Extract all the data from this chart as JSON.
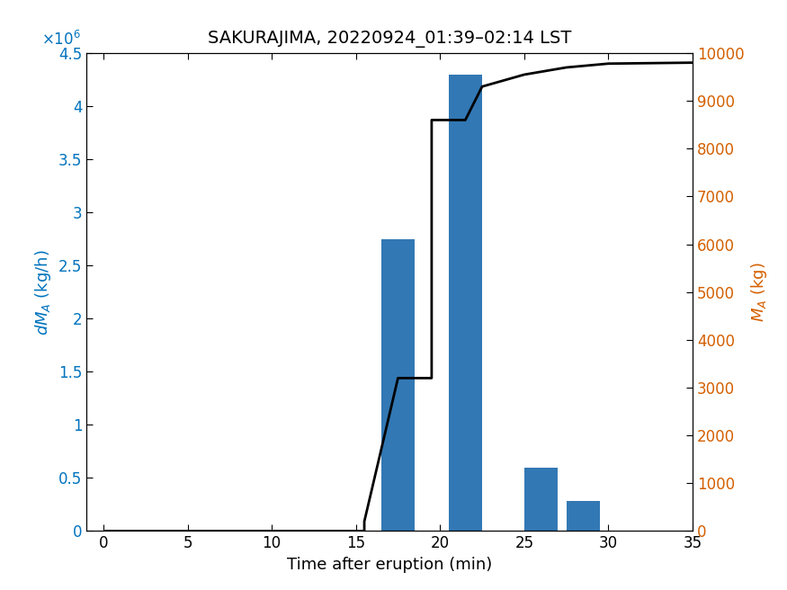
{
  "title": "SAKURAJIMA, 20220924_01:39–02:14 LST",
  "xlabel": "Time after eruption (min)",
  "ylabel_left": "$dM_A$ (kg/h)",
  "ylabel_right": "$M_A$ (kg)",
  "bar_centers": [
    17.5,
    19.5,
    21.5,
    26.0,
    28.5
  ],
  "bar_heights": [
    2750000,
    0,
    4300000,
    600000,
    280000
  ],
  "bar_width": 2.0,
  "bar_color": "#3278b4",
  "line_x": [
    0,
    15.5,
    15.5,
    17.5,
    19.5,
    19.5,
    21.5,
    22.5,
    25.0,
    27.5,
    30.0,
    35.0
  ],
  "line_y": [
    0,
    0,
    200,
    3200,
    3200,
    8600,
    8600,
    9300,
    9550,
    9700,
    9780,
    9800
  ],
  "line_color": "#000000",
  "line_width": 2.0,
  "ylim_left": [
    0,
    4500000
  ],
  "ylim_right": [
    0,
    10000
  ],
  "xlim": [
    -1,
    35
  ],
  "yticks_left": [
    0,
    500000,
    1000000,
    1500000,
    2000000,
    2500000,
    3000000,
    3500000,
    4000000,
    4500000
  ],
  "ytick_labels_left": [
    "0",
    "0.5",
    "1",
    "1.5",
    "2",
    "2.5",
    "3",
    "3.5",
    "4",
    "4.5"
  ],
  "yticks_right": [
    0,
    1000,
    2000,
    3000,
    4000,
    5000,
    6000,
    7000,
    8000,
    9000,
    10000
  ],
  "xticks": [
    0,
    5,
    10,
    15,
    20,
    25,
    30,
    35
  ],
  "background_color": "#ffffff",
  "left_label_color": "#0072bd",
  "right_label_color": "#d45f00",
  "left_tick_color": "#0072bd",
  "right_tick_color": "#d45f00"
}
